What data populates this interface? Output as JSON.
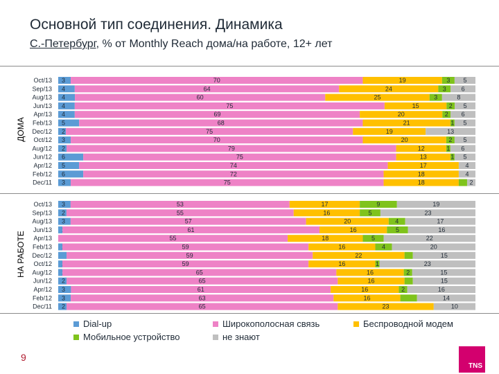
{
  "header": {
    "title": "Основной тип соединения. Динамика",
    "subtitle_location": "С.-Петербург",
    "subtitle_rest": ", % от Monthly Reach дома/на работе, 12+ лет"
  },
  "section_labels": {
    "home": "ДОМА",
    "work": "НА РАБОТЕ"
  },
  "legend": [
    {
      "label": "Dial-up",
      "color": "#5b9bd5"
    },
    {
      "label": "Широкополосная связь",
      "color": "#ee82c6"
    },
    {
      "label": "Беспроводной модем",
      "color": "#ffc000"
    },
    {
      "label": "Мобильное устройство",
      "color": "#7fc31c"
    },
    {
      "label": "не знают",
      "color": "#bfbfbf"
    }
  ],
  "footer": {
    "page_number": "9",
    "logo_text": "TNS"
  },
  "chart_data": [
    {
      "type": "bar",
      "orientation": "horizontal",
      "stacked": true,
      "normalized": true,
      "panel": "ДОМА",
      "categories": [
        "Oct/13",
        "Sep/13",
        "Aug/13",
        "Jun/13",
        "Apr/13",
        "Feb/13",
        "Dec/12",
        "Oct/12",
        "Aug/12",
        "Jun/12",
        "Apr/12",
        "Feb/12",
        "Dec/11"
      ],
      "series": [
        {
          "name": "Dial-up",
          "values": [
            3,
            4,
            4,
            4,
            4,
            5,
            2,
            3,
            2,
            6,
            5,
            6,
            3
          ]
        },
        {
          "name": "Широкополосная связь",
          "values": [
            70,
            64,
            60,
            75,
            69,
            68,
            75,
            70,
            79,
            75,
            74,
            72,
            75
          ]
        },
        {
          "name": "Беспроводной модем",
          "values": [
            19,
            24,
            25,
            15,
            20,
            21,
            19,
            20,
            12,
            13,
            17,
            18,
            18
          ]
        },
        {
          "name": "Мобильное устройство",
          "values": [
            3,
            3,
            3,
            2,
            2,
            1,
            null,
            2,
            1,
            1,
            null,
            null,
            null
          ]
        },
        {
          "name": "не знают",
          "values": [
            5,
            6,
            8,
            5,
            6,
            5,
            13,
            5,
            6,
            5,
            4,
            4,
            2
          ]
        }
      ]
    },
    {
      "type": "bar",
      "orientation": "horizontal",
      "stacked": true,
      "normalized": true,
      "panel": "НА РАБОТЕ",
      "categories": [
        "Oct/13",
        "Sep/13",
        "Aug/13",
        "Jun/13",
        "Apr/13",
        "Feb/13",
        "Dec/12",
        "Oct/12",
        "Aug/12",
        "Jun/12",
        "Apr/12",
        "Feb/12",
        "Dec/11"
      ],
      "series": [
        {
          "name": "Dial-up",
          "values": [
            3,
            2,
            3,
            1,
            null,
            1,
            null,
            1,
            1,
            2,
            3,
            3,
            2
          ]
        },
        {
          "name": "Широкополосная связь",
          "values": [
            53,
            55,
            57,
            61,
            55,
            59,
            59,
            59,
            65,
            65,
            61,
            63,
            65
          ]
        },
        {
          "name": "Беспроводной модем",
          "values": [
            17,
            16,
            20,
            16,
            18,
            16,
            22,
            16,
            16,
            16,
            16,
            16,
            23
          ]
        },
        {
          "name": "Мобильное устройство",
          "values": [
            9,
            5,
            4,
            5,
            5,
            4,
            null,
            1,
            2,
            null,
            2,
            null,
            null
          ]
        },
        {
          "name": "не знают",
          "values": [
            19,
            23,
            17,
            16,
            22,
            20,
            15,
            23,
            15,
            15,
            16,
            14,
            10
          ]
        }
      ]
    }
  ]
}
